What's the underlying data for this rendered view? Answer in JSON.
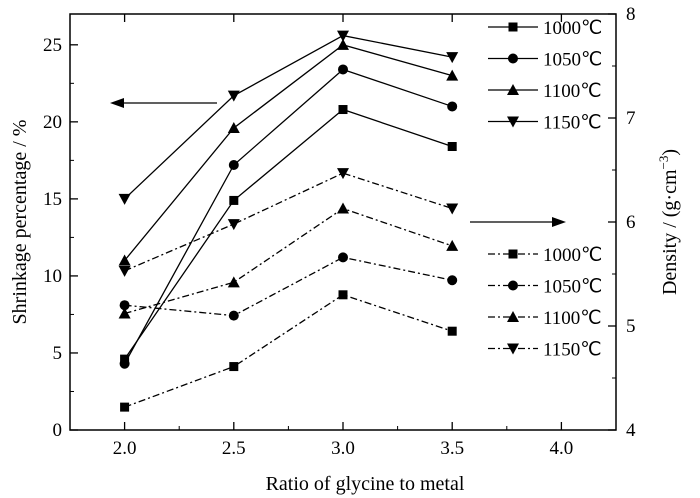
{
  "chart_data": {
    "type": "line",
    "xlabel": "Ratio of glycine to metal",
    "ylabel_left": "Shrinkage percentage / %",
    "ylabel_right": "Density / (g·cm",
    "ylabel_right_exp": "−3",
    "ylabel_right_close": ")",
    "x": [
      2.0,
      2.5,
      3.0,
      3.5
    ],
    "xlim": [
      1.75,
      4.25
    ],
    "x_ticks": [
      "2.0",
      "2.5",
      "3.0",
      "3.5",
      "4.0"
    ],
    "ylim_left": [
      0,
      27
    ],
    "y_ticks_left": [
      "0",
      "5",
      "10",
      "15",
      "20",
      "25"
    ],
    "ylim_right": [
      4,
      8
    ],
    "y_ticks_right": [
      "4",
      "5",
      "6",
      "7",
      "8"
    ],
    "grid": false,
    "series_shrinkage": [
      {
        "name": "1000℃",
        "marker": "square",
        "axis": "left",
        "values": [
          4.6,
          14.9,
          20.8,
          18.4
        ]
      },
      {
        "name": "1050℃",
        "marker": "circle",
        "axis": "left",
        "values": [
          4.3,
          17.2,
          23.4,
          21.0
        ]
      },
      {
        "name": "1100℃",
        "marker": "triangle-up",
        "axis": "left",
        "values": [
          11.0,
          19.6,
          25.0,
          23.0
        ]
      },
      {
        "name": "1150℃",
        "marker": "triangle-down",
        "axis": "left",
        "values": [
          15.0,
          21.7,
          25.6,
          24.2
        ]
      }
    ],
    "series_density": [
      {
        "name": "1000℃",
        "marker": "square",
        "axis": "right",
        "values": [
          4.22,
          4.61,
          5.3,
          4.95
        ]
      },
      {
        "name": "1050℃",
        "marker": "circle",
        "axis": "right",
        "values": [
          5.2,
          5.1,
          5.66,
          5.44
        ]
      },
      {
        "name": "1100℃",
        "marker": "triangle-up",
        "axis": "right",
        "values": [
          5.12,
          5.42,
          6.13,
          5.77
        ]
      },
      {
        "name": "1150℃",
        "marker": "triangle-down",
        "axis": "right",
        "values": [
          5.53,
          5.98,
          6.47,
          6.13
        ]
      }
    ],
    "legend_placement": "right, two groups (solid upper, dash-dot lower)",
    "annotations": [
      "left-pointing arrow → shrinkage curves",
      "right-pointing arrow → density curves"
    ]
  }
}
